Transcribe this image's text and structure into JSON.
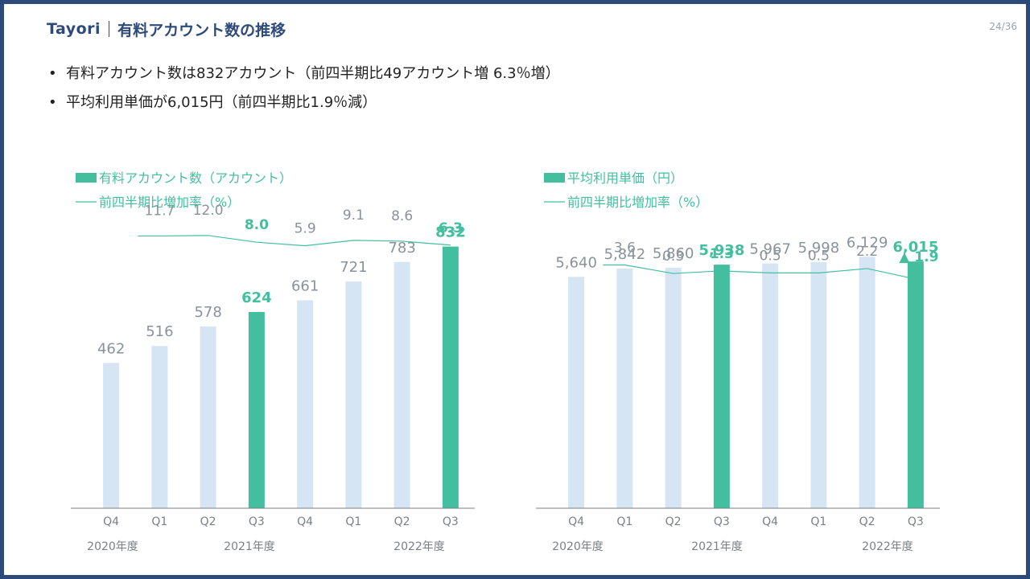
{
  "header": {
    "brand": "Tayori",
    "title": "有料アカウント数の推移",
    "page": "24/36"
  },
  "bullets": [
    "有料アカウント数は832アカウント（前四半期比49アカウント増 6.3％増）",
    "平均利用単価が6,015円（前四半期比1.9％減）"
  ],
  "colors": {
    "highlight": "#43bfa0",
    "bar_light": "#d6e5f3",
    "label_gray": "#8a929c",
    "axis": "#7a8087",
    "frame": "#2e4a7a"
  },
  "chart_data": [
    {
      "type": "bar",
      "legend_bar": "有料アカウント数（アカウント）",
      "legend_line": "前四半期比増加率（%）",
      "categories": [
        "Q4",
        "Q1",
        "Q2",
        "Q3",
        "Q4",
        "Q1",
        "Q2",
        "Q3"
      ],
      "years": [
        "2020年度",
        "2021年度",
        "2022年度"
      ],
      "values": [
        462,
        516,
        578,
        624,
        661,
        721,
        783,
        832
      ],
      "value_labels": [
        "462",
        "516",
        "578",
        "624",
        "661",
        "721",
        "783",
        "832"
      ],
      "highlight": [
        3,
        7
      ],
      "ylim": [
        0,
        900
      ],
      "growth_rate": [
        null,
        11.7,
        12.0,
        8.0,
        5.9,
        9.1,
        8.6,
        6.3
      ],
      "growth_labels": [
        "",
        "11.7",
        "12.0",
        "8.0",
        "5.9",
        "9.1",
        "8.6",
        "6.3"
      ],
      "growth_decrease": [
        false,
        false,
        false,
        false,
        false,
        false,
        false,
        false
      ]
    },
    {
      "type": "bar",
      "legend_bar": "平均利用単価（円）",
      "legend_line": "前四半期比増加率（%）",
      "categories": [
        "Q4",
        "Q1",
        "Q2",
        "Q3",
        "Q4",
        "Q1",
        "Q2",
        "Q3"
      ],
      "years": [
        "2020年度",
        "2021年度",
        "2022年度"
      ],
      "values": [
        5640,
        5842,
        5860,
        5938,
        5967,
        5998,
        6129,
        6015
      ],
      "value_labels": [
        "5,640",
        "5,842",
        "5,860",
        "5,938",
        "5,967",
        "5,998",
        "6,129",
        "6,015"
      ],
      "highlight": [
        3,
        7
      ],
      "ylim": [
        0,
        6900
      ],
      "growth_rate": [
        null,
        3.6,
        0.3,
        1.3,
        0.5,
        0.5,
        2.2,
        -1.9
      ],
      "growth_labels": [
        "",
        "3.6",
        "0.3",
        "1.3",
        "0.5",
        "0.5",
        "2.2",
        "▲ 1.9"
      ],
      "growth_decrease": [
        false,
        false,
        false,
        false,
        false,
        false,
        false,
        true
      ]
    }
  ]
}
